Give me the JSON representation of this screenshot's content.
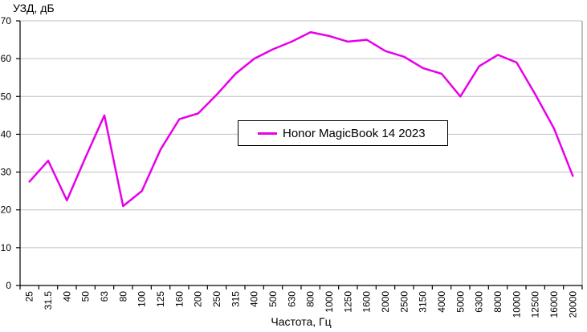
{
  "axis_titles": {
    "y": "УЗД, дБ",
    "x": "Частота, Гц"
  },
  "legend": {
    "label": "Honor MagicBook 14 2023"
  },
  "colors": {
    "line": "#E800E8",
    "grid": "#C0C0C0",
    "axis": "#000000",
    "plot_border": "#808080",
    "background": "#FFFFFF"
  },
  "chart_data": {
    "type": "line",
    "title": "УЗД, дБ",
    "xlabel": "Частота, Гц",
    "ylabel": "УЗД, дБ",
    "categories": [
      "25",
      "31.5",
      "40",
      "50",
      "63",
      "80",
      "100",
      "125",
      "160",
      "200",
      "250",
      "315",
      "400",
      "500",
      "630",
      "800",
      "1000",
      "1250",
      "1600",
      "2000",
      "2500",
      "3150",
      "4000",
      "5000",
      "6300",
      "8000",
      "10000",
      "12500",
      "16000",
      "20000"
    ],
    "series": [
      {
        "name": "Honor MagicBook 14 2023",
        "color": "#E800E8",
        "values": [
          27.5,
          33,
          22.5,
          34,
          45,
          21,
          25,
          36,
          44,
          45.5,
          50.5,
          56,
          60,
          62.5,
          64.5,
          67,
          66,
          64.5,
          65,
          62,
          60.5,
          57.5,
          56,
          50,
          58,
          61,
          59,
          50.5,
          41.5,
          29
        ]
      }
    ],
    "ylim": [
      0,
      70
    ],
    "yticks": [
      0,
      10,
      20,
      30,
      40,
      50,
      60,
      70
    ],
    "grid": "horizontal",
    "legend_position": "center-inside",
    "x_label_rotation": -90
  }
}
